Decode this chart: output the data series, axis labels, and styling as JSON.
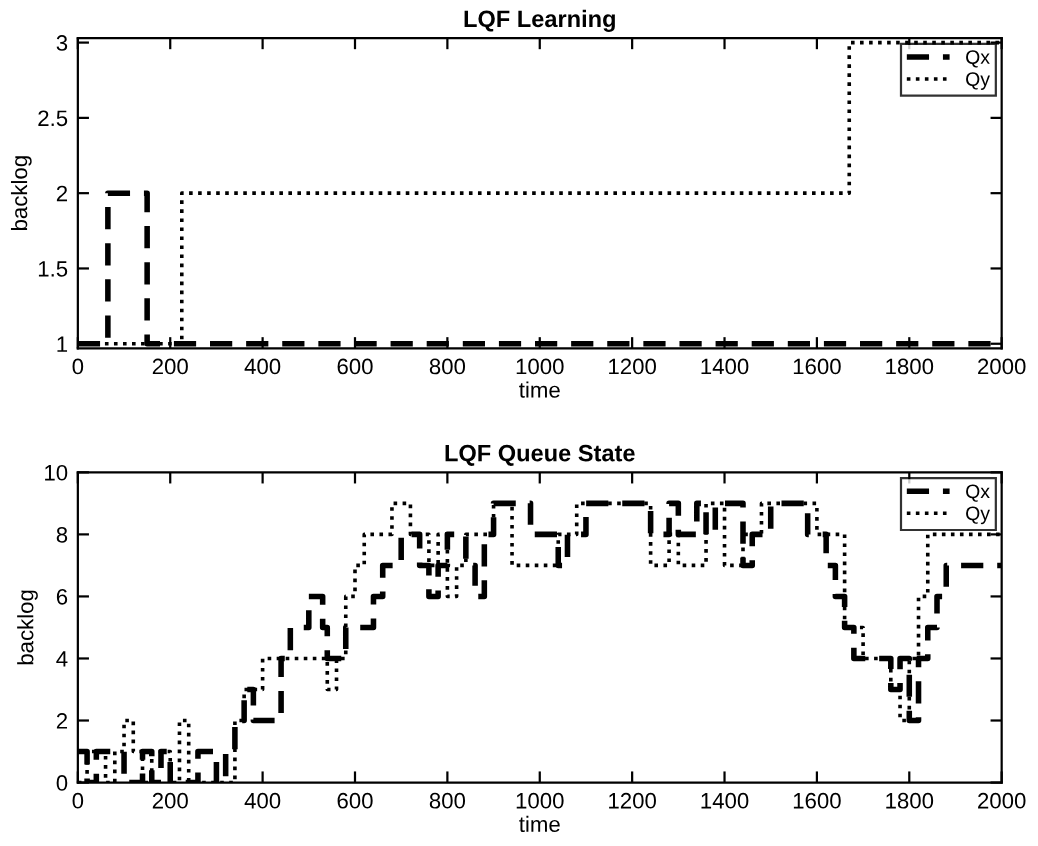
{
  "chart_data": [
    {
      "type": "step",
      "title": "LQF Learning",
      "xlabel": "time",
      "ylabel": "backlog",
      "xlim": [
        0,
        2000
      ],
      "xticks": [
        0,
        200,
        400,
        600,
        800,
        1000,
        1200,
        1400,
        1600,
        1800,
        2000
      ],
      "ylim": [
        0.97,
        3.03
      ],
      "yticks": [
        1,
        1.5,
        2,
        2.5,
        3
      ],
      "legend": "top right",
      "grid": false,
      "series": [
        {
          "name": "Qx",
          "color": "#000000",
          "line_style": "dashed",
          "x": [
            0,
            65,
            150,
            2000
          ],
          "values": [
            1,
            2,
            1,
            1
          ]
        },
        {
          "name": "Qy",
          "color": "#000000",
          "line_style": "dotted",
          "x": [
            0,
            225,
            1670,
            2000
          ],
          "values": [
            1,
            2,
            3,
            3
          ]
        }
      ]
    },
    {
      "type": "step",
      "title": "LQF Queue State",
      "xlabel": "time",
      "ylabel": "backlog",
      "xlim": [
        0,
        2000
      ],
      "xticks": [
        0,
        200,
        400,
        600,
        800,
        1000,
        1200,
        1400,
        1600,
        1800,
        2000
      ],
      "ylim": [
        0,
        10
      ],
      "yticks": [
        0,
        2,
        4,
        6,
        8,
        10
      ],
      "legend": "top right",
      "grid": false,
      "series": [
        {
          "name": "Qx",
          "color": "#000000",
          "line_style": "dashed",
          "x": [
            0,
            20,
            40,
            100,
            140,
            160,
            180,
            200,
            260,
            300,
            320,
            340,
            360,
            380,
            440,
            460,
            500,
            530,
            540,
            580,
            640,
            660,
            700,
            740,
            760,
            780,
            800,
            840,
            860,
            880,
            900,
            980,
            1040,
            1060,
            1100,
            1240,
            1280,
            1300,
            1340,
            1360,
            1380,
            1440,
            1460,
            1500,
            1580,
            1620,
            1640,
            1660,
            1680,
            1760,
            1780,
            1800,
            1820,
            1840,
            1860,
            1880,
            2000
          ],
          "values": [
            1,
            0,
            1,
            0,
            1,
            0,
            1,
            0,
            1,
            0,
            1,
            2,
            3,
            2,
            4,
            5,
            6,
            5,
            4,
            5,
            6,
            7,
            8,
            7,
            6,
            7,
            8,
            7,
            6,
            8,
            9,
            8,
            7,
            8,
            9,
            8,
            9,
            8,
            9,
            8,
            9,
            7,
            8,
            9,
            8,
            7,
            6,
            5,
            4,
            3,
            4,
            2,
            4,
            5,
            6,
            7,
            7
          ]
        },
        {
          "name": "Qy",
          "color": "#000000",
          "line_style": "dotted",
          "x": [
            0,
            20,
            60,
            80,
            100,
            120,
            140,
            160,
            200,
            220,
            240,
            340,
            360,
            400,
            440,
            500,
            540,
            560,
            580,
            600,
            620,
            680,
            720,
            760,
            780,
            800,
            820,
            840,
            880,
            900,
            940,
            1040,
            1080,
            1240,
            1280,
            1300,
            1360,
            1400,
            1440,
            1480,
            1560,
            1600,
            1660,
            1700,
            1760,
            1780,
            1800,
            1820,
            1840,
            1880,
            2000
          ],
          "values": [
            0,
            1,
            0,
            1,
            2,
            1,
            0,
            1,
            0,
            2,
            0,
            2,
            3,
            4,
            4,
            4,
            3,
            4,
            6,
            7,
            8,
            9,
            8,
            7,
            8,
            6,
            7,
            8,
            8,
            9,
            7,
            8,
            9,
            7,
            8,
            7,
            9,
            7,
            8,
            9,
            9,
            8,
            5,
            4,
            3,
            2,
            4,
            6,
            8,
            8,
            8
          ]
        }
      ]
    }
  ]
}
